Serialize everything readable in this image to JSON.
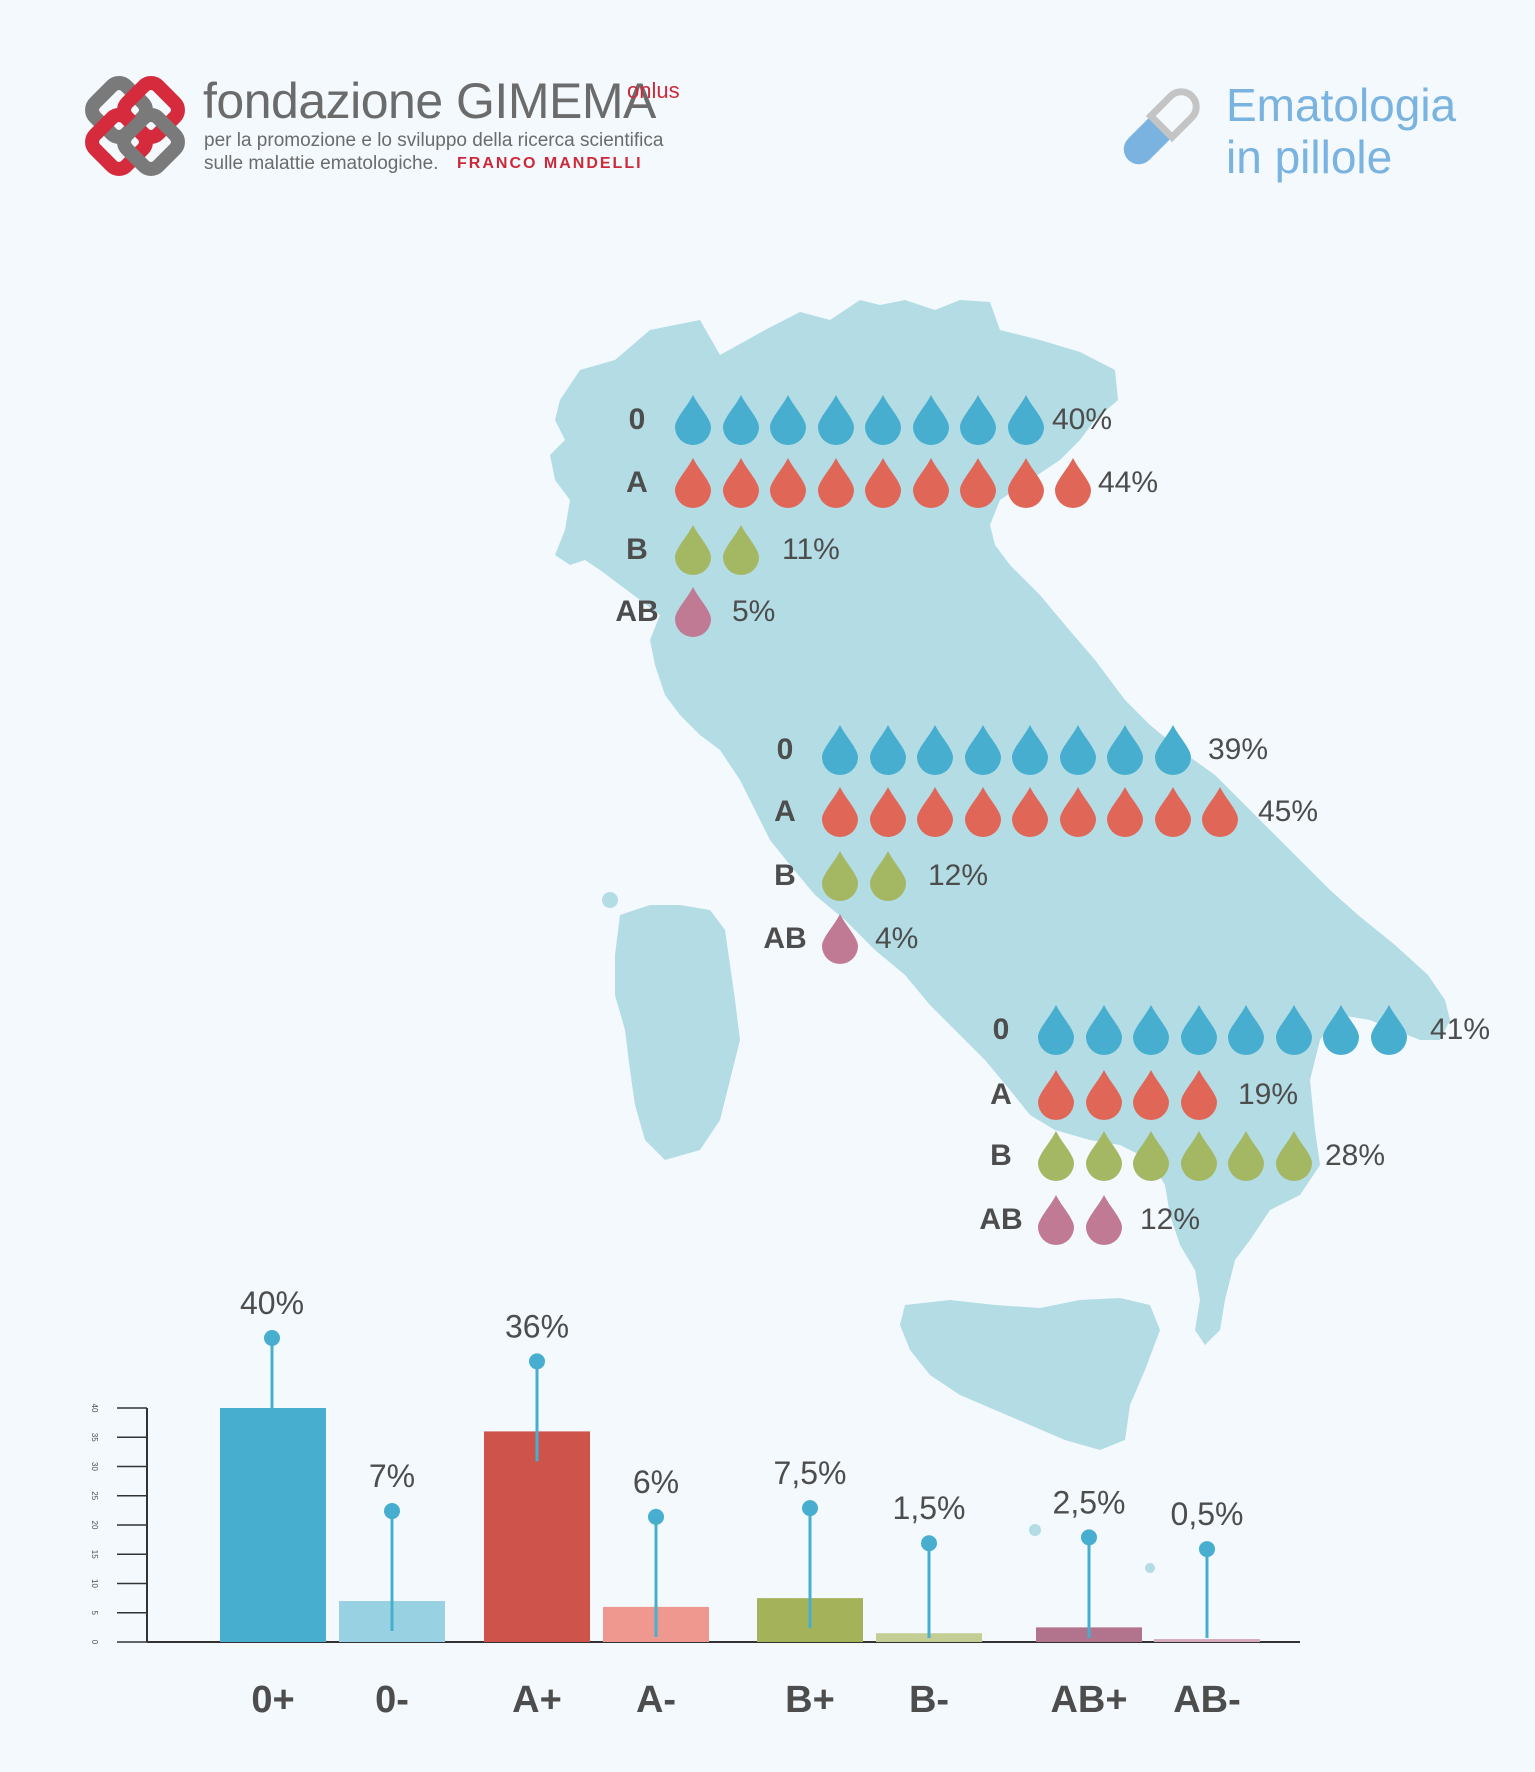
{
  "header": {
    "brand_name": "fondazione GIMEMA",
    "brand_suffix": "onlus",
    "tagline_line1": "per la promozione e lo sviluppo della ricerca scientifica",
    "tagline_line2": "sulle malattie ematologiche.",
    "founder": "FRANCO MANDELLI",
    "pill_line1": "Ematologia",
    "pill_line2": "in pillole"
  },
  "colors": {
    "map": "#b3dce5",
    "group_0": "#47aed0",
    "group_A": "#e06758",
    "group_B": "#a4b763",
    "group_AB": "#c07a93"
  },
  "regions": [
    {
      "rows": [
        {
          "group": "0",
          "drops": 8,
          "percent": "40%"
        },
        {
          "group": "A",
          "drops": 9,
          "percent": "44%"
        },
        {
          "group": "B",
          "drops": 2,
          "percent": "11%"
        },
        {
          "group": "AB",
          "drops": 1,
          "percent": "5%"
        }
      ]
    },
    {
      "rows": [
        {
          "group": "0",
          "drops": 8,
          "percent": "39%"
        },
        {
          "group": "A",
          "drops": 9,
          "percent": "45%"
        },
        {
          "group": "B",
          "drops": 2,
          "percent": "12%"
        },
        {
          "group": "AB",
          "drops": 1,
          "percent": "4%"
        }
      ]
    },
    {
      "rows": [
        {
          "group": "0",
          "drops": 8,
          "percent": "41%"
        },
        {
          "group": "A",
          "drops": 4,
          "percent": "19%"
        },
        {
          "group": "B",
          "drops": 6,
          "percent": "28%"
        },
        {
          "group": "AB",
          "drops": 2,
          "percent": "12%"
        }
      ]
    }
  ],
  "chart_data": {
    "type": "bar",
    "categories": [
      "0+",
      "0-",
      "A+",
      "A-",
      "B+",
      "B-",
      "AB+",
      "AB-"
    ],
    "values": [
      40,
      7,
      36,
      6,
      7.5,
      1.5,
      2.5,
      0.5
    ],
    "value_labels": [
      "40%",
      "7%",
      "36%",
      "6%",
      "7,5%",
      "1,5%",
      "2,5%",
      "0,5%"
    ],
    "bar_colors": [
      "#47aed0",
      "#98d1e2",
      "#ce534b",
      "#ee9890",
      "#a4b25a",
      "#c4cd94",
      "#b2738c",
      "#d4a9ba"
    ],
    "ylim": [
      0,
      40
    ],
    "yticks": [
      0,
      5,
      10,
      15,
      20,
      25,
      30,
      35,
      40
    ],
    "marker_color": "#47aed0"
  }
}
